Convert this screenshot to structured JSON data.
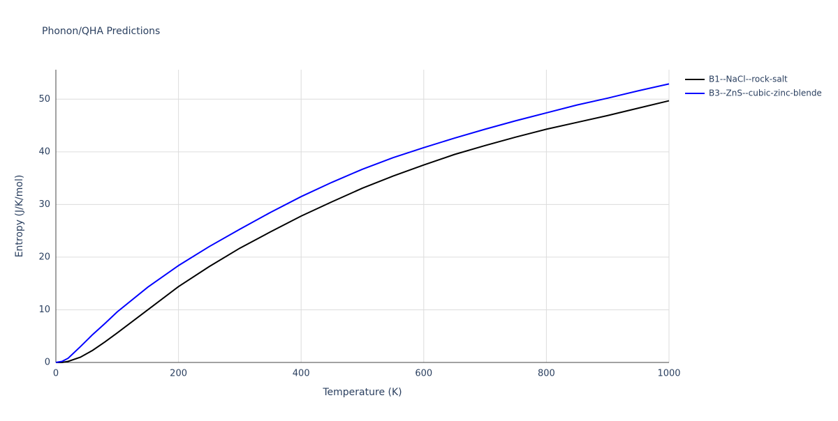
{
  "chart_data": {
    "type": "line",
    "title": "Phonon/QHA Predictions",
    "x_label": "Temperature (K)",
    "y_label": "Entropy (J/K/mol)",
    "x": [
      0,
      10,
      20,
      40,
      60,
      80,
      100,
      150,
      200,
      250,
      300,
      350,
      400,
      450,
      500,
      550,
      600,
      650,
      700,
      750,
      800,
      850,
      900,
      950,
      1000
    ],
    "series": [
      {
        "name": "B1--NaCl--rock-salt",
        "color": "#000000",
        "values": [
          0,
          0,
          0.2,
          1,
          2.3,
          3.9,
          5.6,
          10,
          14.4,
          18.2,
          21.7,
          24.8,
          27.8,
          30.5,
          33.1,
          35.4,
          37.5,
          39.5,
          41.2,
          42.8,
          44.3,
          45.6,
          46.9,
          48.3,
          49.7
        ]
      },
      {
        "name": "B3--ZnS--cubic-zinc-blende",
        "color": "#0000ff",
        "values": [
          0,
          0.2,
          0.8,
          3.0,
          5.3,
          7.4,
          9.6,
          14.3,
          18.4,
          22,
          25.3,
          28.5,
          31.5,
          34.2,
          36.7,
          38.9,
          40.8,
          42.6,
          44.3,
          45.9,
          47.4,
          48.9,
          50.2,
          51.6,
          52.9
        ]
      }
    ],
    "xlim": [
      0,
      1000
    ],
    "xticks": [
      0,
      200,
      400,
      600,
      800,
      1000
    ],
    "ylim": [
      0,
      55.6
    ],
    "yticks": [
      0,
      10,
      20,
      30,
      40,
      50
    ],
    "grid": true,
    "legend": "right"
  }
}
